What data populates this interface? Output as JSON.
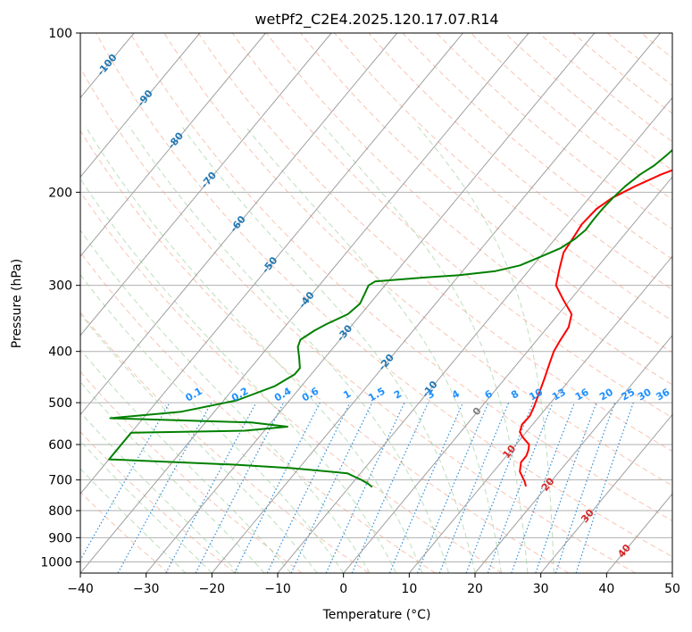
{
  "chart_data": {
    "type": "line",
    "subtype": "skew-t log-p diagram",
    "title": "wetPf2_C2E4.2025.120.17.07.R14",
    "xlabel": "Temperature (°C)",
    "ylabel": "Pressure (hPa)",
    "xlim": [
      -40,
      50
    ],
    "ylim": [
      1050,
      100
    ],
    "y_scale": "log",
    "x_ticks": [
      -40,
      -30,
      -20,
      -10,
      0,
      10,
      20,
      30,
      40,
      50
    ],
    "y_ticks": [
      100,
      200,
      300,
      400,
      500,
      600,
      700,
      800,
      900,
      1000
    ],
    "grid": true,
    "isotherm_labels": [
      {
        "text": "-100",
        "t": -100,
        "p": 115
      },
      {
        "text": "-90",
        "t": -90,
        "p": 133
      },
      {
        "text": "-80",
        "t": -80,
        "p": 160
      },
      {
        "text": "-70",
        "t": -70,
        "p": 190
      },
      {
        "text": "-60",
        "t": -60,
        "p": 230
      },
      {
        "text": "-50",
        "t": -50,
        "p": 275
      },
      {
        "text": "-40",
        "t": -40,
        "p": 320
      },
      {
        "text": "-30",
        "t": -30,
        "p": 370
      },
      {
        "text": "-20",
        "t": -20,
        "p": 420
      },
      {
        "text": "-10",
        "t": -10,
        "p": 472
      },
      {
        "text": "0",
        "t": 0,
        "p": 520
      },
      {
        "text": "10",
        "t": 10,
        "p": 620
      },
      {
        "text": "20",
        "t": 20,
        "p": 715
      },
      {
        "text": "30",
        "t": 30,
        "p": 820
      },
      {
        "text": "40",
        "t": 40,
        "p": 955
      }
    ],
    "mixing_ratio_labels": [
      "0.1",
      "0.2",
      "0.4",
      "0.6",
      "1",
      "1.5",
      "2",
      "3",
      "4",
      "6",
      "8",
      "10",
      "13",
      "16",
      "20",
      "25",
      "30",
      "36"
    ],
    "mixing_ratio_label_x": [
      -22.5,
      -15.5,
      -9,
      -4.8,
      0.8,
      5.3,
      8.5,
      13.5,
      17.3,
      22.3,
      26.3,
      29.5,
      33,
      36.5,
      40.2,
      43.5,
      46,
      48.8
    ],
    "series": [
      {
        "name": "",
        "color": "#ff0000",
        "points": [
          [
            16.8,
            720
          ],
          [
            16,
            705
          ],
          [
            14,
            675
          ],
          [
            13,
            648
          ],
          [
            13,
            630
          ],
          [
            12.6,
            615
          ],
          [
            12,
            600
          ],
          [
            11,
            590
          ],
          [
            10,
            580
          ],
          [
            9,
            568
          ],
          [
            8.4,
            550
          ],
          [
            8.5,
            530
          ],
          [
            8,
            510
          ],
          [
            7.2,
            485
          ],
          [
            6,
            450
          ],
          [
            5,
            425
          ],
          [
            4,
            400
          ],
          [
            3.6,
            382
          ],
          [
            3.2,
            360
          ],
          [
            2,
            340
          ],
          [
            -1,
            320
          ],
          [
            -4,
            300
          ],
          [
            -5.5,
            280
          ],
          [
            -7,
            260
          ],
          [
            -7.5,
            240
          ],
          [
            -7.8,
            230
          ],
          [
            -7.5,
            215
          ],
          [
            -6.5,
            205
          ],
          [
            -4.5,
            195
          ],
          [
            -2,
            185
          ],
          [
            1.5,
            175
          ],
          [
            5,
            165
          ],
          [
            9,
            158
          ],
          [
            12.5,
            150
          ],
          [
            15,
            140
          ],
          [
            17.5,
            130
          ],
          [
            19.5,
            120
          ],
          [
            21.5,
            110
          ],
          [
            23,
            103
          ],
          [
            23.5,
            100
          ]
        ]
      },
      {
        "name": "",
        "color": "#008000",
        "points": [
          [
            -6.5,
            722
          ],
          [
            -7.5,
            712
          ],
          [
            -9,
            700
          ],
          [
            -10.5,
            690
          ],
          [
            -12,
            680
          ],
          [
            -21,
            665
          ],
          [
            -30,
            655
          ],
          [
            -50,
            640
          ],
          [
            -50,
            570
          ],
          [
            -33,
            565
          ],
          [
            -27,
            555
          ],
          [
            -33,
            545
          ],
          [
            -55,
            535
          ],
          [
            -45,
            520
          ],
          [
            -38,
            495
          ],
          [
            -34,
            465
          ],
          [
            -32.5,
            442
          ],
          [
            -32.5,
            430
          ],
          [
            -34,
            410
          ],
          [
            -35.5,
            392
          ],
          [
            -36,
            380
          ],
          [
            -35,
            365
          ],
          [
            -34,
            355
          ],
          [
            -32,
            340
          ],
          [
            -31.5,
            325
          ],
          [
            -32,
            312
          ],
          [
            -32.5,
            300
          ],
          [
            -32,
            295
          ],
          [
            -25,
            290
          ],
          [
            -20,
            287
          ],
          [
            -15,
            282
          ],
          [
            -12,
            275
          ],
          [
            -10,
            265
          ],
          [
            -8,
            255
          ],
          [
            -7,
            245
          ],
          [
            -6.5,
            236
          ],
          [
            -6.6,
            225
          ],
          [
            -6.6,
            215
          ],
          [
            -6.4,
            205
          ],
          [
            -6,
            195
          ],
          [
            -5.2,
            185
          ],
          [
            -4.2,
            178
          ],
          [
            -3.6,
            170
          ],
          [
            -3.2,
            163
          ],
          [
            -2.6,
            155
          ],
          [
            -1.6,
            145
          ],
          [
            -0.5,
            135
          ],
          [
            0.5,
            128
          ],
          [
            2.3,
            120
          ],
          [
            5,
            112
          ],
          [
            7,
            105
          ],
          [
            8.5,
            100
          ]
        ]
      }
    ]
  }
}
